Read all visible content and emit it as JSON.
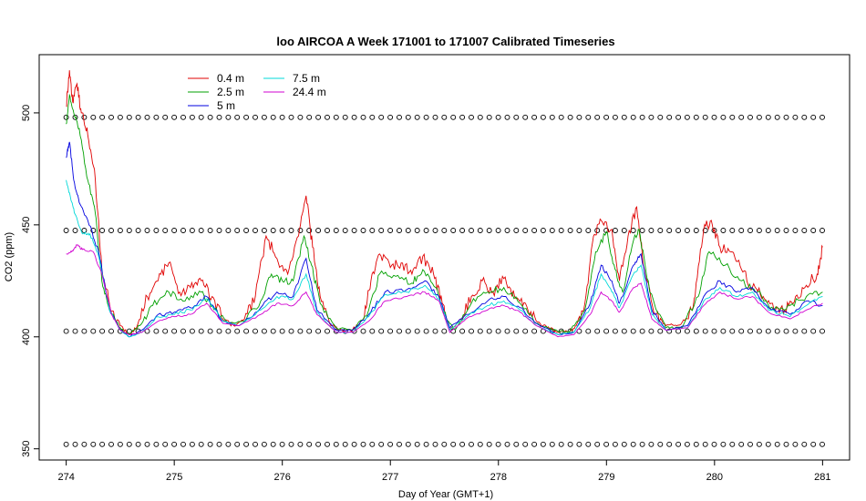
{
  "chart_data": {
    "type": "line",
    "title": "loo AIRCOA A  Week 171001 to 171007  Calibrated Timeseries",
    "xlabel": "Day of Year (GMT+1)",
    "ylabel": "CO2 (ppm)",
    "xlim": [
      273.75,
      281.25
    ],
    "ylim": [
      345,
      526
    ],
    "xticks": [
      274,
      275,
      276,
      277,
      278,
      279,
      280,
      281
    ],
    "yticks": [
      350,
      400,
      450,
      500
    ],
    "grid": false,
    "legend_position": "top-left",
    "calibration_levels": [
      352,
      402.5,
      447.5,
      498
    ],
    "series": [
      {
        "name": "0.4 m",
        "color": "#e00000",
        "points": [
          [
            274.0,
            503
          ],
          [
            274.03,
            519
          ],
          [
            274.06,
            505
          ],
          [
            274.1,
            513
          ],
          [
            274.14,
            500
          ],
          [
            274.2,
            490
          ],
          [
            274.27,
            470
          ],
          [
            274.33,
            430
          ],
          [
            274.4,
            415
          ],
          [
            274.5,
            405
          ],
          [
            274.58,
            401
          ],
          [
            274.65,
            404
          ],
          [
            274.75,
            418
          ],
          [
            274.85,
            425
          ],
          [
            274.95,
            433
          ],
          [
            275.05,
            420
          ],
          [
            275.15,
            422
          ],
          [
            275.25,
            425
          ],
          [
            275.35,
            418
          ],
          [
            275.45,
            408
          ],
          [
            275.55,
            405
          ],
          [
            275.65,
            408
          ],
          [
            275.75,
            418
          ],
          [
            275.85,
            445
          ],
          [
            275.95,
            435
          ],
          [
            276.05,
            428
          ],
          [
            276.15,
            445
          ],
          [
            276.22,
            463
          ],
          [
            276.28,
            440
          ],
          [
            276.35,
            418
          ],
          [
            276.45,
            405
          ],
          [
            276.55,
            403
          ],
          [
            276.65,
            403
          ],
          [
            276.75,
            408
          ],
          [
            276.82,
            425
          ],
          [
            276.9,
            437
          ],
          [
            277.0,
            431
          ],
          [
            277.1,
            433
          ],
          [
            277.2,
            428
          ],
          [
            277.3,
            436
          ],
          [
            277.4,
            428
          ],
          [
            277.48,
            415
          ],
          [
            277.55,
            403
          ],
          [
            277.65,
            408
          ],
          [
            277.75,
            418
          ],
          [
            277.85,
            425
          ],
          [
            277.95,
            420
          ],
          [
            278.05,
            426
          ],
          [
            278.15,
            418
          ],
          [
            278.25,
            415
          ],
          [
            278.35,
            407
          ],
          [
            278.45,
            404
          ],
          [
            278.55,
            402
          ],
          [
            278.65,
            402
          ],
          [
            278.72,
            405
          ],
          [
            278.8,
            415
          ],
          [
            278.88,
            445
          ],
          [
            278.95,
            452
          ],
          [
            279.05,
            448
          ],
          [
            279.12,
            425
          ],
          [
            279.2,
            445
          ],
          [
            279.28,
            458
          ],
          [
            279.35,
            430
          ],
          [
            279.45,
            410
          ],
          [
            279.55,
            405
          ],
          [
            279.65,
            405
          ],
          [
            279.75,
            408
          ],
          [
            279.82,
            418
          ],
          [
            279.9,
            448
          ],
          [
            279.97,
            452
          ],
          [
            280.05,
            440
          ],
          [
            280.15,
            438
          ],
          [
            280.25,
            430
          ],
          [
            280.35,
            422
          ],
          [
            280.45,
            418
          ],
          [
            280.55,
            412
          ],
          [
            280.65,
            412
          ],
          [
            280.75,
            418
          ],
          [
            280.85,
            423
          ],
          [
            280.95,
            428
          ],
          [
            281.0,
            440
          ]
        ]
      },
      {
        "name": "2.5 m",
        "color": "#00a000",
        "points": [
          [
            274.0,
            495
          ],
          [
            274.03,
            508
          ],
          [
            274.07,
            500
          ],
          [
            274.12,
            493
          ],
          [
            274.2,
            470
          ],
          [
            274.27,
            455
          ],
          [
            274.33,
            425
          ],
          [
            274.4,
            412
          ],
          [
            274.5,
            404
          ],
          [
            274.58,
            401
          ],
          [
            274.68,
            405
          ],
          [
            274.8,
            414
          ],
          [
            274.95,
            420
          ],
          [
            275.1,
            416
          ],
          [
            275.25,
            420
          ],
          [
            275.35,
            414
          ],
          [
            275.5,
            406
          ],
          [
            275.65,
            407
          ],
          [
            275.8,
            416
          ],
          [
            275.9,
            428
          ],
          [
            276.0,
            425
          ],
          [
            276.1,
            425
          ],
          [
            276.2,
            445
          ],
          [
            276.27,
            432
          ],
          [
            276.35,
            415
          ],
          [
            276.5,
            404
          ],
          [
            276.65,
            403
          ],
          [
            276.8,
            412
          ],
          [
            276.9,
            428
          ],
          [
            277.05,
            427
          ],
          [
            277.2,
            424
          ],
          [
            277.3,
            430
          ],
          [
            277.42,
            422
          ],
          [
            277.52,
            408
          ],
          [
            277.6,
            403
          ],
          [
            277.75,
            415
          ],
          [
            277.9,
            420
          ],
          [
            278.05,
            422
          ],
          [
            278.2,
            415
          ],
          [
            278.35,
            406
          ],
          [
            278.5,
            403
          ],
          [
            278.65,
            402
          ],
          [
            278.8,
            412
          ],
          [
            278.9,
            438
          ],
          [
            279.0,
            447
          ],
          [
            279.08,
            430
          ],
          [
            279.15,
            420
          ],
          [
            279.25,
            443
          ],
          [
            279.3,
            448
          ],
          [
            279.4,
            420
          ],
          [
            279.55,
            404
          ],
          [
            279.7,
            404
          ],
          [
            279.85,
            418
          ],
          [
            279.95,
            438
          ],
          [
            280.1,
            432
          ],
          [
            280.25,
            425
          ],
          [
            280.4,
            420
          ],
          [
            280.55,
            412
          ],
          [
            280.7,
            414
          ],
          [
            280.85,
            418
          ],
          [
            281.0,
            420
          ]
        ]
      },
      {
        "name": "5 m",
        "color": "#0000e0",
        "points": [
          [
            274.0,
            480
          ],
          [
            274.03,
            487
          ],
          [
            274.07,
            470
          ],
          [
            274.12,
            460
          ],
          [
            274.2,
            452
          ],
          [
            274.3,
            438
          ],
          [
            274.4,
            412
          ],
          [
            274.5,
            403
          ],
          [
            274.58,
            400
          ],
          [
            274.7,
            403
          ],
          [
            274.85,
            410
          ],
          [
            275.0,
            411
          ],
          [
            275.15,
            413
          ],
          [
            275.3,
            418
          ],
          [
            275.45,
            407
          ],
          [
            275.6,
            405
          ],
          [
            275.8,
            413
          ],
          [
            275.95,
            420
          ],
          [
            276.1,
            418
          ],
          [
            276.22,
            435
          ],
          [
            276.32,
            412
          ],
          [
            276.5,
            403
          ],
          [
            276.65,
            403
          ],
          [
            276.8,
            410
          ],
          [
            276.95,
            420
          ],
          [
            277.15,
            421
          ],
          [
            277.32,
            425
          ],
          [
            277.45,
            418
          ],
          [
            277.55,
            404
          ],
          [
            277.7,
            410
          ],
          [
            277.9,
            416
          ],
          [
            278.05,
            418
          ],
          [
            278.2,
            413
          ],
          [
            278.35,
            406
          ],
          [
            278.55,
            401
          ],
          [
            278.7,
            402
          ],
          [
            278.85,
            415
          ],
          [
            278.95,
            432
          ],
          [
            279.05,
            425
          ],
          [
            279.12,
            415
          ],
          [
            279.25,
            432
          ],
          [
            279.32,
            437
          ],
          [
            279.42,
            412
          ],
          [
            279.55,
            403
          ],
          [
            279.75,
            405
          ],
          [
            279.9,
            418
          ],
          [
            280.05,
            425
          ],
          [
            280.2,
            420
          ],
          [
            280.35,
            422
          ],
          [
            280.5,
            413
          ],
          [
            280.7,
            410
          ],
          [
            280.85,
            416
          ],
          [
            281.0,
            414
          ]
        ]
      },
      {
        "name": "7.5 m",
        "color": "#00d8d8",
        "points": [
          [
            274.0,
            470
          ],
          [
            274.04,
            462
          ],
          [
            274.08,
            455
          ],
          [
            274.15,
            446
          ],
          [
            274.22,
            446
          ],
          [
            274.3,
            436
          ],
          [
            274.4,
            412
          ],
          [
            274.5,
            403
          ],
          [
            274.58,
            400
          ],
          [
            274.7,
            402
          ],
          [
            274.85,
            409
          ],
          [
            275.0,
            410
          ],
          [
            275.15,
            412
          ],
          [
            275.3,
            417
          ],
          [
            275.45,
            407
          ],
          [
            275.6,
            405
          ],
          [
            275.8,
            412
          ],
          [
            275.95,
            418
          ],
          [
            276.1,
            417
          ],
          [
            276.22,
            428
          ],
          [
            276.32,
            411
          ],
          [
            276.5,
            402
          ],
          [
            276.65,
            402
          ],
          [
            276.8,
            409
          ],
          [
            276.95,
            419
          ],
          [
            277.15,
            420
          ],
          [
            277.32,
            423
          ],
          [
            277.45,
            417
          ],
          [
            277.55,
            403
          ],
          [
            277.7,
            409
          ],
          [
            277.9,
            414
          ],
          [
            278.05,
            416
          ],
          [
            278.2,
            412
          ],
          [
            278.35,
            405
          ],
          [
            278.55,
            401
          ],
          [
            278.7,
            402
          ],
          [
            278.85,
            413
          ],
          [
            278.95,
            428
          ],
          [
            279.05,
            420
          ],
          [
            279.12,
            413
          ],
          [
            279.25,
            428
          ],
          [
            279.32,
            432
          ],
          [
            279.42,
            410
          ],
          [
            279.55,
            403
          ],
          [
            279.75,
            404
          ],
          [
            279.9,
            416
          ],
          [
            280.05,
            422
          ],
          [
            280.2,
            418
          ],
          [
            280.35,
            420
          ],
          [
            280.5,
            412
          ],
          [
            280.7,
            409
          ],
          [
            280.85,
            414
          ],
          [
            281.0,
            418
          ]
        ]
      },
      {
        "name": "24.4 m",
        "color": "#d000d0",
        "points": [
          [
            274.0,
            437
          ],
          [
            274.05,
            438
          ],
          [
            274.1,
            441
          ],
          [
            274.15,
            439
          ],
          [
            274.25,
            438
          ],
          [
            274.33,
            428
          ],
          [
            274.42,
            410
          ],
          [
            274.5,
            403
          ],
          [
            274.58,
            401
          ],
          [
            274.7,
            402
          ],
          [
            274.85,
            407
          ],
          [
            275.0,
            409
          ],
          [
            275.15,
            410
          ],
          [
            275.3,
            415
          ],
          [
            275.45,
            406
          ],
          [
            275.6,
            405
          ],
          [
            275.8,
            410
          ],
          [
            275.95,
            415
          ],
          [
            276.1,
            414
          ],
          [
            276.22,
            420
          ],
          [
            276.32,
            410
          ],
          [
            276.5,
            402
          ],
          [
            276.65,
            402
          ],
          [
            276.8,
            407
          ],
          [
            276.95,
            416
          ],
          [
            277.15,
            418
          ],
          [
            277.32,
            420
          ],
          [
            277.45,
            416
          ],
          [
            277.55,
            402
          ],
          [
            277.7,
            408
          ],
          [
            277.9,
            412
          ],
          [
            278.05,
            414
          ],
          [
            278.2,
            411
          ],
          [
            278.35,
            405
          ],
          [
            278.55,
            400
          ],
          [
            278.7,
            401
          ],
          [
            278.85,
            410
          ],
          [
            278.95,
            420
          ],
          [
            279.05,
            416
          ],
          [
            279.12,
            411
          ],
          [
            279.25,
            422
          ],
          [
            279.32,
            424
          ],
          [
            279.42,
            408
          ],
          [
            279.55,
            403
          ],
          [
            279.75,
            404
          ],
          [
            279.9,
            414
          ],
          [
            280.05,
            420
          ],
          [
            280.2,
            417
          ],
          [
            280.35,
            418
          ],
          [
            280.5,
            411
          ],
          [
            280.7,
            408
          ],
          [
            280.85,
            412
          ],
          [
            281.0,
            415
          ]
        ]
      }
    ]
  }
}
